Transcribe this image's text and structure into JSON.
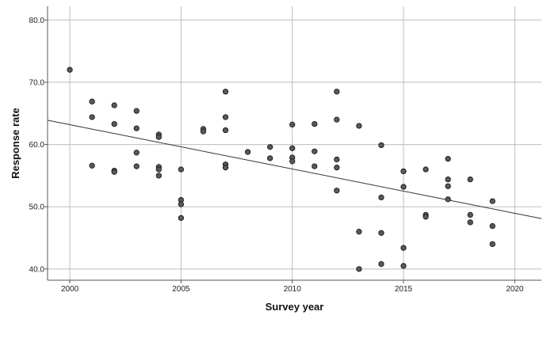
{
  "chart_data": {
    "type": "scatter",
    "title": "",
    "xlabel": "Survey year",
    "ylabel": "Response rate",
    "xlim": [
      1999,
      2021.2
    ],
    "ylim": [
      38.2,
      82.2
    ],
    "x_ticks": [
      2000,
      2005,
      2010,
      2015,
      2020
    ],
    "x_tick_labels": [
      "2000",
      "2005",
      "2010",
      "2015",
      "2020"
    ],
    "y_ticks": [
      40,
      50,
      60,
      70,
      80
    ],
    "y_tick_labels": [
      "40.0",
      "50.0",
      "60.0",
      "70.0",
      "80.0"
    ],
    "grid": true,
    "legend": "none",
    "fit_line": {
      "x": [
        1999,
        2021.2
      ],
      "y": [
        63.9,
        48.1
      ]
    },
    "points": [
      [
        2000,
        72.0
      ],
      [
        2001,
        66.9
      ],
      [
        2001,
        64.4
      ],
      [
        2001,
        56.6
      ],
      [
        2002,
        66.3
      ],
      [
        2002,
        63.3
      ],
      [
        2002,
        55.8
      ],
      [
        2002,
        55.6
      ],
      [
        2003,
        65.4
      ],
      [
        2003,
        62.6
      ],
      [
        2003,
        58.7
      ],
      [
        2003,
        56.5
      ],
      [
        2004,
        61.6
      ],
      [
        2004,
        61.2
      ],
      [
        2004,
        56.4
      ],
      [
        2004,
        56.0
      ],
      [
        2004,
        55.0
      ],
      [
        2005,
        56.0
      ],
      [
        2005,
        51.1
      ],
      [
        2005,
        50.4
      ],
      [
        2005,
        48.2
      ],
      [
        2006,
        62.5
      ],
      [
        2006,
        62.1
      ],
      [
        2007,
        68.5
      ],
      [
        2007,
        64.4
      ],
      [
        2007,
        62.3
      ],
      [
        2007,
        56.8
      ],
      [
        2007,
        56.3
      ],
      [
        2008,
        58.8
      ],
      [
        2009,
        59.6
      ],
      [
        2009,
        57.8
      ],
      [
        2010,
        63.2
      ],
      [
        2010,
        59.4
      ],
      [
        2010,
        57.9
      ],
      [
        2010,
        57.3
      ],
      [
        2011,
        63.3
      ],
      [
        2011,
        58.9
      ],
      [
        2011,
        56.5
      ],
      [
        2012,
        68.5
      ],
      [
        2012,
        64.0
      ],
      [
        2012,
        57.6
      ],
      [
        2012,
        56.3
      ],
      [
        2012,
        52.6
      ],
      [
        2013,
        63.0
      ],
      [
        2013,
        46.0
      ],
      [
        2013,
        40.0
      ],
      [
        2014,
        59.9
      ],
      [
        2014,
        51.5
      ],
      [
        2014,
        45.8
      ],
      [
        2014,
        40.8
      ],
      [
        2015,
        55.7
      ],
      [
        2015,
        53.2
      ],
      [
        2015,
        43.4
      ],
      [
        2015,
        40.5
      ],
      [
        2016,
        56.0
      ],
      [
        2016,
        48.7
      ],
      [
        2016,
        48.4
      ],
      [
        2017,
        57.7
      ],
      [
        2017,
        54.4
      ],
      [
        2017,
        53.3
      ],
      [
        2017,
        51.2
      ],
      [
        2018,
        54.4
      ],
      [
        2018,
        48.7
      ],
      [
        2018,
        47.5
      ],
      [
        2019,
        50.9
      ],
      [
        2019,
        46.9
      ],
      [
        2019,
        44.0
      ]
    ],
    "colors": {
      "point_fill": "#595959",
      "point_stroke": "#1a1a1a",
      "grid": "#bdbdbd",
      "axis": "#555555",
      "fit_line": "#333333"
    }
  }
}
